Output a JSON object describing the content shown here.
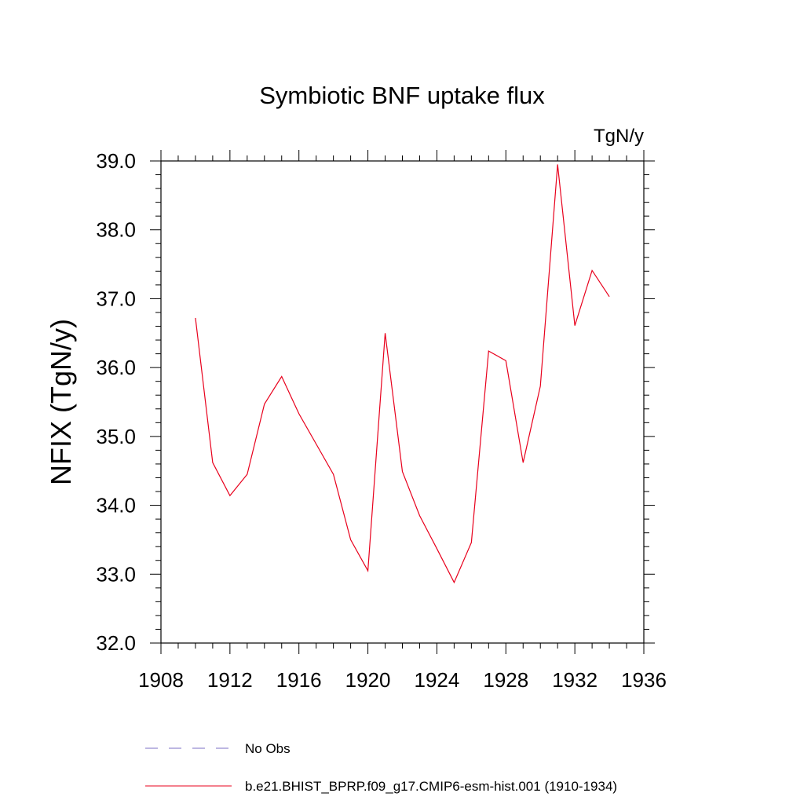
{
  "chart_data": {
    "type": "line",
    "title": "Symbiotic BNF uptake flux",
    "units_label": "TgN/y",
    "ylabel": "NFIX  (TgN/y)",
    "xlabel": "",
    "xlim": [
      1908,
      1936
    ],
    "ylim": [
      32.0,
      39.0
    ],
    "x_major_ticks": [
      1908,
      1912,
      1916,
      1920,
      1924,
      1928,
      1932,
      1936
    ],
    "x_minor_step": 1,
    "y_major_ticks": [
      "32.0",
      "33.0",
      "34.0",
      "35.0",
      "36.0",
      "37.0",
      "38.0",
      "39.0"
    ],
    "y_minor_step": 0.2,
    "grid": false,
    "legend_placement": "bottom",
    "series": [
      {
        "name": "b.e21.BHIST_BPRP.f09_g17.CMIP6-esm-hist.001 (1910-1934)",
        "color": "#e8001c",
        "style": "solid",
        "x": [
          1910,
          1911,
          1912,
          1913,
          1914,
          1915,
          1916,
          1917,
          1918,
          1919,
          1920,
          1921,
          1922,
          1923,
          1924,
          1925,
          1926,
          1927,
          1928,
          1929,
          1930,
          1931,
          1932,
          1933,
          1934
        ],
        "y": [
          36.72,
          34.62,
          34.14,
          34.45,
          35.47,
          35.87,
          35.33,
          34.89,
          34.45,
          33.5,
          33.05,
          36.5,
          34.49,
          33.85,
          33.37,
          32.88,
          33.46,
          36.24,
          36.1,
          34.62,
          35.73,
          38.95,
          36.61,
          37.41,
          37.03
        ]
      }
    ],
    "legend": [
      {
        "label": "No Obs",
        "color": "#7b6fc4",
        "style": "dashed"
      },
      {
        "label": "b.e21.BHIST_BPRP.f09_g17.CMIP6-esm-hist.001 (1910-1934)",
        "color": "#e8001c",
        "style": "solid"
      }
    ]
  }
}
